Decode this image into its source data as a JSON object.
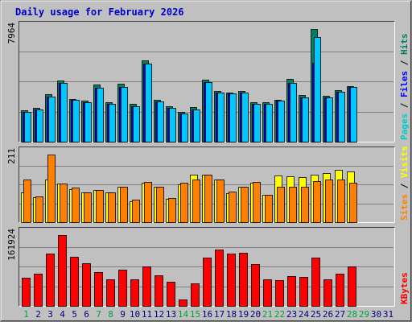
{
  "chart_data": [
    {
      "type": "bar",
      "panel": "hits-files-pages",
      "title": "Daily usage for February 2026",
      "max_label": "7964",
      "ymax": 7964,
      "side_labels": [
        {
          "text": "Pages",
          "color": "#00c8c8"
        },
        {
          "text": " / ",
          "color": "#000000"
        },
        {
          "text": "Files",
          "color": "#0000ff"
        },
        {
          "text": " / ",
          "color": "#000000"
        },
        {
          "text": "Hits",
          "color": "#008060"
        }
      ],
      "series": [
        {
          "name": "Hits",
          "color": "#008060",
          "values": [
            2230,
            2400,
            3380,
            4320,
            3020,
            2880,
            4050,
            2760,
            4080,
            2650,
            5750,
            2970,
            2520,
            2110,
            2420,
            4400,
            3560,
            3480,
            3560,
            2780,
            2780,
            2980,
            4420,
            3280,
            7964,
            3240,
            3660,
            3950
          ]
        },
        {
          "name": "Files",
          "color": "#0000ff",
          "values": [
            2100,
            2300,
            3200,
            4150,
            2950,
            2800,
            3800,
            2650,
            3850,
            2500,
            5500,
            2850,
            2400,
            2000,
            2300,
            4200,
            3450,
            3400,
            3450,
            2700,
            2700,
            2900,
            4150,
            3150,
            5600,
            3150,
            3500,
            3850
          ]
        },
        {
          "name": "Pages",
          "color": "#00c8ff",
          "values": [
            2100,
            2300,
            3200,
            4150,
            2950,
            2800,
            3800,
            2650,
            3850,
            2500,
            5500,
            2850,
            2400,
            2000,
            2300,
            4200,
            3450,
            3400,
            3450,
            2700,
            2700,
            2900,
            4150,
            3150,
            7400,
            3150,
            3500,
            3850
          ]
        }
      ]
    },
    {
      "type": "bar",
      "panel": "visits-sites",
      "max_label": "211",
      "ymax": 211,
      "side_labels": [
        {
          "text": "Sites",
          "color": "#ff8000"
        },
        {
          "text": " / ",
          "color": "#000000"
        },
        {
          "text": "Visits",
          "color": "#ffff00"
        }
      ],
      "series": [
        {
          "name": "Visits",
          "color": "#ffff00",
          "values": [
            92,
            77,
            132,
            121,
            102,
            94,
            101,
            92,
            111,
            66,
            123,
            111,
            73,
            119,
            148,
            147,
            132,
            91,
            111,
            124,
            86,
            145,
            143,
            141,
            149,
            154,
            163,
            159
          ]
        },
        {
          "name": "Sites",
          "color": "#ff8000",
          "values": [
            133,
            81,
            211,
            121,
            108,
            94,
            101,
            92,
            111,
            70,
            126,
            111,
            76,
            122,
            132,
            147,
            132,
            96,
            111,
            126,
            86,
            111,
            111,
            111,
            129,
            132,
            132,
            124
          ]
        }
      ]
    },
    {
      "type": "bar",
      "panel": "kbytes",
      "max_label": "161924",
      "ymax": 161924,
      "side_labels": [
        {
          "text": "KBytes",
          "color": "#ff0000"
        }
      ],
      "series": [
        {
          "name": "KBytes",
          "color": "#ff0000",
          "values": [
            64000,
            74000,
            119000,
            161924,
            113000,
            98000,
            78000,
            61000,
            82000,
            61000,
            91000,
            70000,
            55000,
            14000,
            51000,
            110000,
            129000,
            119000,
            122000,
            95000,
            61000,
            59000,
            68000,
            67000,
            110000,
            61000,
            74000,
            90000
          ]
        }
      ]
    },
    {
      "type": "axis",
      "days": [
        "1",
        "2",
        "3",
        "4",
        "5",
        "6",
        "7",
        "8",
        "9",
        "10",
        "11",
        "12",
        "13",
        "14",
        "15",
        "16",
        "17",
        "18",
        "19",
        "20",
        "21",
        "22",
        "23",
        "24",
        "25",
        "26",
        "27",
        "28",
        "29",
        "30",
        "31"
      ],
      "weekend_days": [
        "1",
        "7",
        "8",
        "14",
        "15",
        "21",
        "22",
        "28",
        "29"
      ],
      "weekday_color": "#000080",
      "weekend_color": "#00a040"
    }
  ]
}
